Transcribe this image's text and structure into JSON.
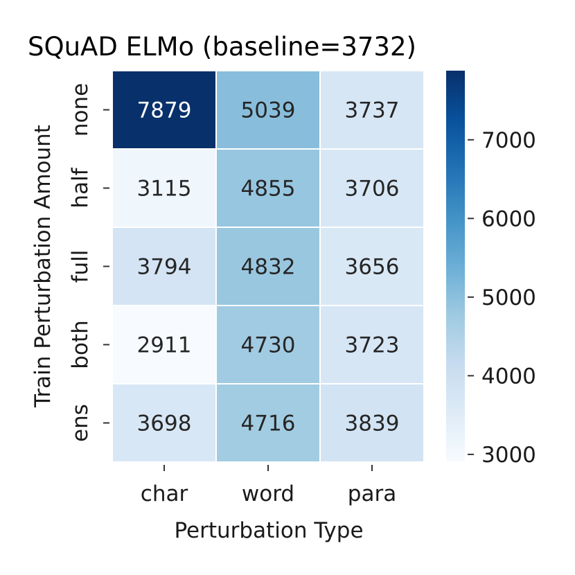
{
  "chart_data": {
    "type": "heatmap",
    "title": "SQuAD ELMo (baseline=3732)",
    "xlabel": "Perturbation Type",
    "ylabel": "Train Perturbation Amount",
    "x_categories": [
      "char",
      "word",
      "para"
    ],
    "y_categories": [
      "none",
      "half",
      "full",
      "both",
      "ens"
    ],
    "values": [
      [
        7879,
        5039,
        3737
      ],
      [
        3115,
        4855,
        3706
      ],
      [
        3794,
        4832,
        3656
      ],
      [
        2911,
        4730,
        3723
      ],
      [
        3698,
        4716,
        3839
      ]
    ],
    "colormap": "Blues",
    "color_range": [
      2911,
      7879
    ],
    "colorbar_ticks": [
      3000,
      4000,
      5000,
      6000,
      7000
    ],
    "colorbar_tick_labels": [
      "3000",
      "4000",
      "5000",
      "6000",
      "7000"
    ]
  }
}
